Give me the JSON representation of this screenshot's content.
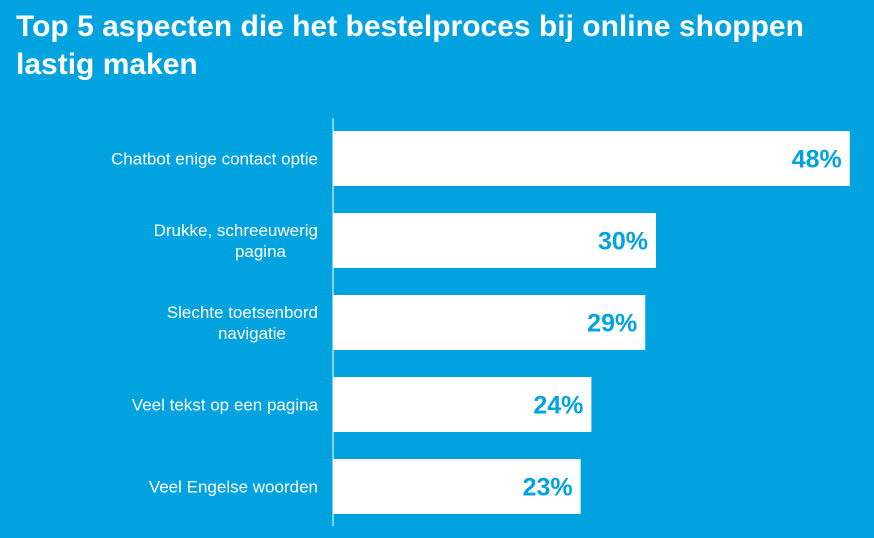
{
  "title": "Top 5 aspecten die het bestelproces bij online shoppen lastig maken",
  "colors": {
    "background": "#00a3e0",
    "bar": "#ffffff",
    "value_text": "#00a3e0",
    "label_text": "#ffffff",
    "axis": "#ffffff"
  },
  "chart_data": {
    "type": "bar",
    "orientation": "horizontal",
    "categories": [
      [
        "Chatbot enige contact optie"
      ],
      [
        "Drukke, schreeuwerig",
        "pagina"
      ],
      [
        "Slechte toetsenbord",
        "navigatie"
      ],
      [
        "Veel tekst op een pagina"
      ],
      [
        "Veel Engelse woorden"
      ]
    ],
    "values": [
      48,
      30,
      29,
      24,
      23
    ],
    "value_labels": [
      "48%",
      "30%",
      "29%",
      "24%",
      "23%"
    ],
    "unit": "%",
    "xlim": [
      0,
      60
    ],
    "grid": false,
    "legend": "none"
  }
}
